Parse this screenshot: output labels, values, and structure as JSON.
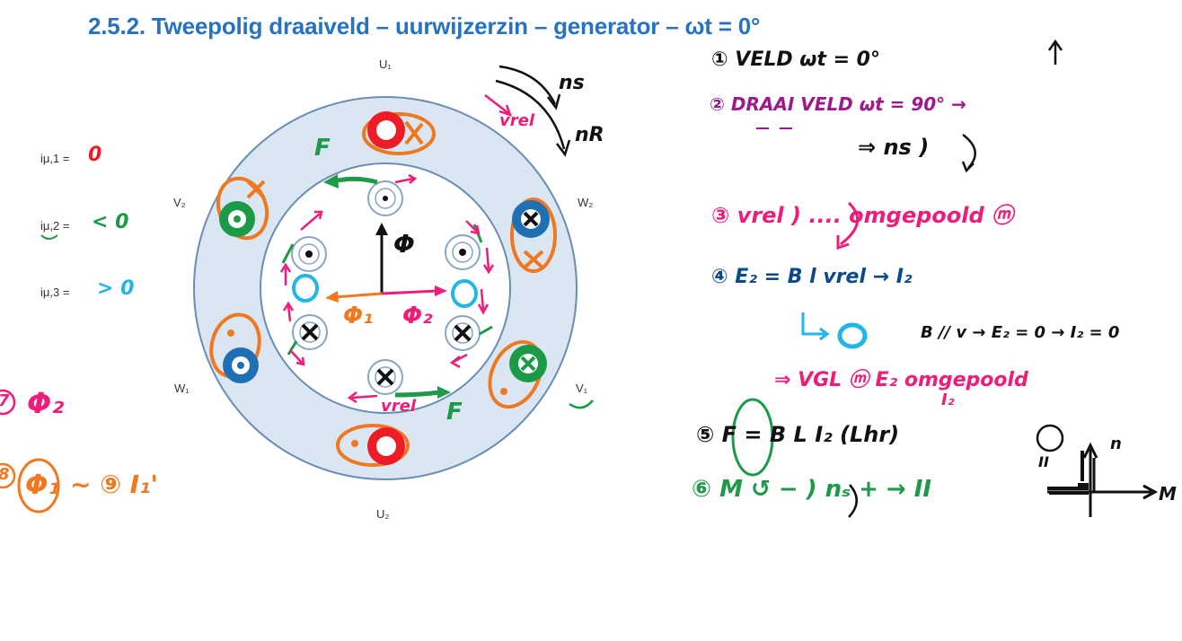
{
  "title": "2.5.2. Tweepolig draaiveld – uurwijzerzin – generator – ωt = 0°",
  "colors": {
    "title": "#2773c0",
    "stator": "#dbe6f3",
    "stator_edge": "#6a8db5",
    "red": "#ee1c24",
    "green": "#1c9a47",
    "blue": "#1f6fb5",
    "cyan": "#21b5e8",
    "orange": "#f07820",
    "magenta": "#ee1d7a",
    "purple": "#a0198c",
    "navy": "#0b4a8a",
    "black": "#111111"
  },
  "poles": {
    "u1": "U₁",
    "u2": "U₂",
    "v1": "V₁",
    "v2": "V₂",
    "w1": "W₁",
    "w2": "W₂"
  },
  "currents": {
    "i1": {
      "label": "iμ,1 =",
      "value": "0"
    },
    "i2": {
      "label": "iμ,2 =",
      "value": "< 0"
    },
    "i3": {
      "label": "iμ,3 =",
      "value": "> 0"
    }
  },
  "annotations": {
    "flux_left": "Φ₂",
    "flux_left_num": "7",
    "flux_bottom": "Φ₁",
    "flux_bottom_num": "8",
    "flux_bottom_tail": "~ ⑨ I₁'",
    "ns": "ns",
    "nr": "nR",
    "vrel_top": "vrel",
    "vrel_bottom": "vrel",
    "force_top": "F",
    "force_bottom": "F",
    "phi_center": "Φ",
    "phi1_center": "Φ₁",
    "phi2_center": "Φ₂"
  },
  "notes": {
    "n1": "① VELD     ωt = 0°",
    "n2": "② DRAAI VELD    ωt = 90°  →",
    "n2b": "⇒ ns )",
    "n3": "③ vrel )  ....  omgepoold ⓜ",
    "n4": "④ E₂ = B l vrel  →  I₂",
    "n4b": "B // v  →  E₂ = 0  →  I₂ = 0",
    "n4c": "⇒ VGL ⓜ  E₂  omgepoold",
    "n4d": "I₂",
    "n5": "⑤ F = B L I₂     (Lhr)",
    "n6": "⑥ M ↺ −   ) nₛ +   → II",
    "n6_circle": "⑥",
    "graph_n": "n",
    "graph_m": "M",
    "graph_ii": "II"
  }
}
